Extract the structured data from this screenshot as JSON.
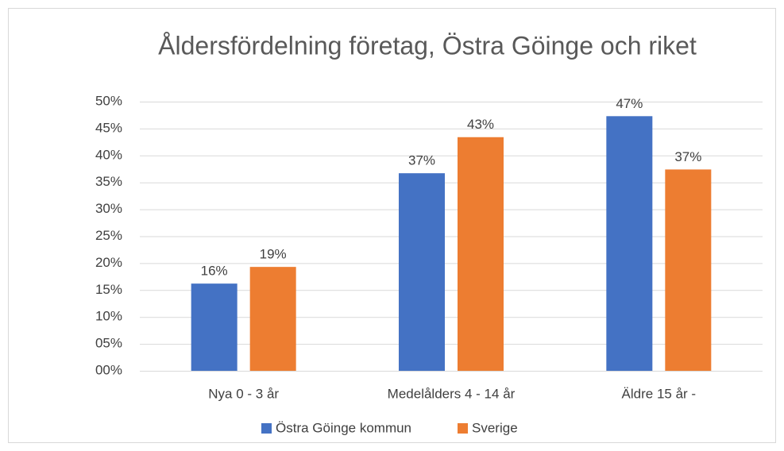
{
  "chart_data": {
    "type": "bar",
    "title": "Åldersfördelning företag, Östra Göinge och riket",
    "categories": [
      "Nya 0 - 3 år",
      "Medelålders 4 - 14 år",
      "Äldre 15 år -"
    ],
    "series": [
      {
        "name": "Östra Göinge kommun",
        "color": "#4472c4",
        "values": [
          16.2,
          36.7,
          47.3
        ],
        "value_labels": [
          "16%",
          "37%",
          "47%"
        ]
      },
      {
        "name": "Sverige",
        "color": "#ed7d31",
        "values": [
          19.3,
          43.4,
          37.4
        ],
        "value_labels": [
          "19%",
          "43%",
          "37%"
        ]
      }
    ],
    "ylim": [
      0,
      50
    ],
    "yticks": [
      {
        "value": 0,
        "label": "00%"
      },
      {
        "value": 5,
        "label": "05%"
      },
      {
        "value": 10,
        "label": "10%"
      },
      {
        "value": 15,
        "label": "15%"
      },
      {
        "value": 20,
        "label": "20%"
      },
      {
        "value": 25,
        "label": "25%"
      },
      {
        "value": 30,
        "label": "30%"
      },
      {
        "value": 35,
        "label": "35%"
      },
      {
        "value": 40,
        "label": "40%"
      },
      {
        "value": 45,
        "label": "45%"
      },
      {
        "value": 50,
        "label": "50%"
      }
    ],
    "grid": true,
    "legend": "bottom"
  }
}
